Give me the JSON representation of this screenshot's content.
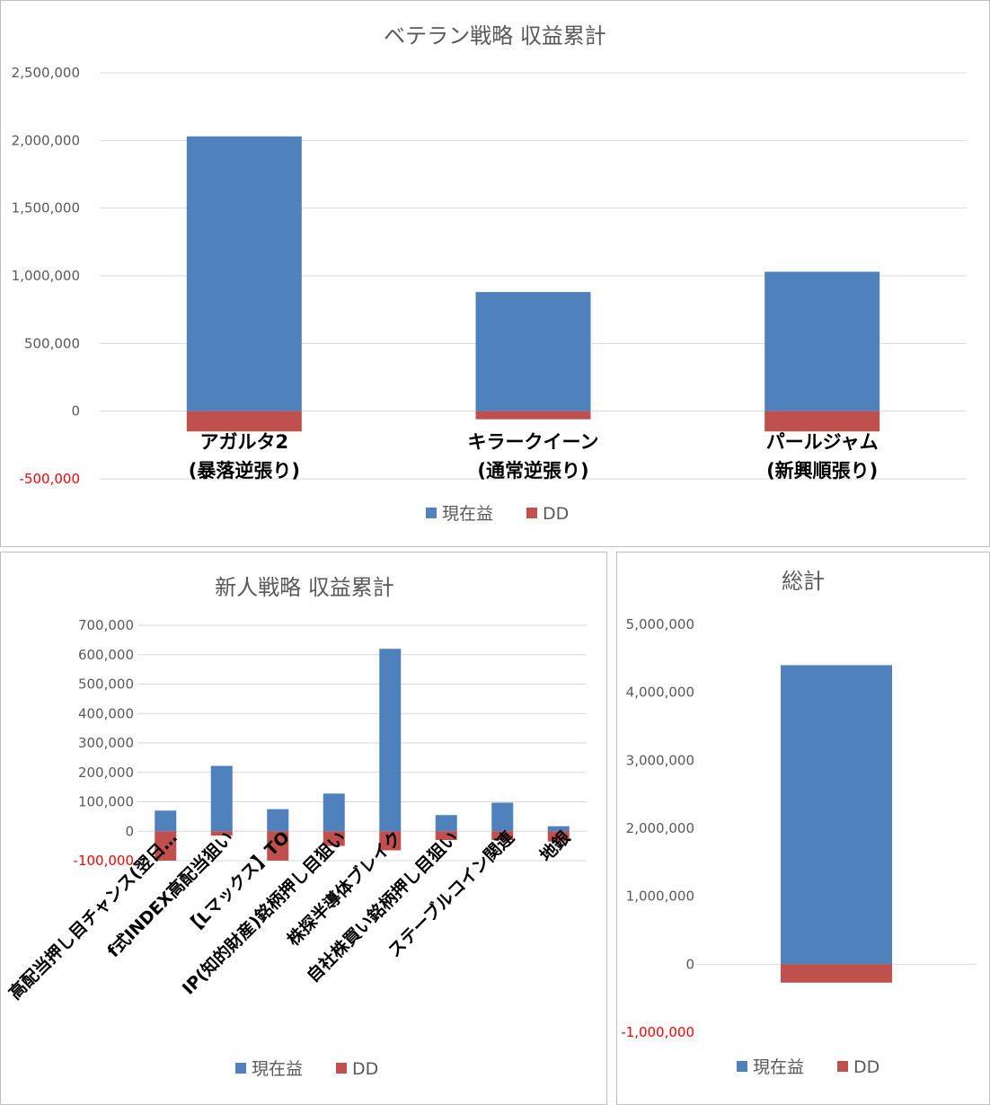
{
  "legend": {
    "profit_label": "現在益",
    "dd_label": "DD"
  },
  "colors": {
    "profit": "#4f81bd",
    "dd": "#c0504d",
    "negative_tick": "#ff0000",
    "grid": "#d9d9d9",
    "axis_text": "#595959",
    "title_text": "#595959"
  },
  "chart_data": [
    {
      "type": "bar",
      "stacked": true,
      "title": "ベテラン戦略 収益累計",
      "categories": [
        [
          "アガルタ2",
          "(暴落逆張り)"
        ],
        [
          "キラークイーン",
          "(通常逆張り)"
        ],
        [
          "パールジャム",
          "(新興順張り)"
        ]
      ],
      "series": [
        {
          "name": "現在益",
          "values": [
            2030000,
            880000,
            1030000
          ]
        },
        {
          "name": "DD",
          "values": [
            -150000,
            -60000,
            -150000
          ]
        }
      ],
      "ylim": [
        -500000,
        2500000
      ],
      "yticks": [
        -500000,
        0,
        500000,
        1000000,
        1500000,
        2000000,
        2500000
      ],
      "ytick_labels": [
        "-500,000",
        "0",
        "500,000",
        "1,000,000",
        "1,500,000",
        "2,000,000",
        "2,500,000"
      ],
      "grid": true,
      "legend": "bottom"
    },
    {
      "type": "bar",
      "stacked": true,
      "title": "新人戦略 収益累計",
      "categories": [
        "高配当押し目チャンス(翌日…",
        "f式INDEX高配当狙い",
        "【Lマックス】TO",
        "IP(知的財産)銘柄押し目狙い",
        "株探半導体ブレイク",
        "自社株買い銘柄押し目狙い",
        "ステーブルコイン関連",
        "地銀"
      ],
      "series": [
        {
          "name": "現在益",
          "values": [
            70000,
            222000,
            75000,
            128000,
            620000,
            55000,
            97000,
            17000
          ]
        },
        {
          "name": "DD",
          "values": [
            -100000,
            -15000,
            -100000,
            -50000,
            -65000,
            -30000,
            -30000,
            -35000
          ]
        }
      ],
      "ylim": [
        -100000,
        700000
      ],
      "yticks": [
        -100000,
        0,
        100000,
        200000,
        300000,
        400000,
        500000,
        600000,
        700000
      ],
      "ytick_labels": [
        "-100,000",
        "0",
        "100,000",
        "200,000",
        "300,000",
        "400,000",
        "500,000",
        "600,000",
        "700,000"
      ],
      "grid": true,
      "legend": "bottom"
    },
    {
      "type": "bar",
      "stacked": true,
      "title": "総計",
      "categories": [
        ""
      ],
      "series": [
        {
          "name": "現在益",
          "values": [
            4400000
          ]
        },
        {
          "name": "DD",
          "values": [
            -270000
          ]
        }
      ],
      "ylim": [
        -1000000,
        5000000
      ],
      "yticks": [
        -1000000,
        0,
        1000000,
        2000000,
        3000000,
        4000000,
        5000000
      ],
      "ytick_labels": [
        "-1,000,000",
        "0",
        "1,000,000",
        "2,000,000",
        "3,000,000",
        "4,000,000",
        "5,000,000"
      ],
      "grid": false,
      "legend": "bottom"
    }
  ]
}
